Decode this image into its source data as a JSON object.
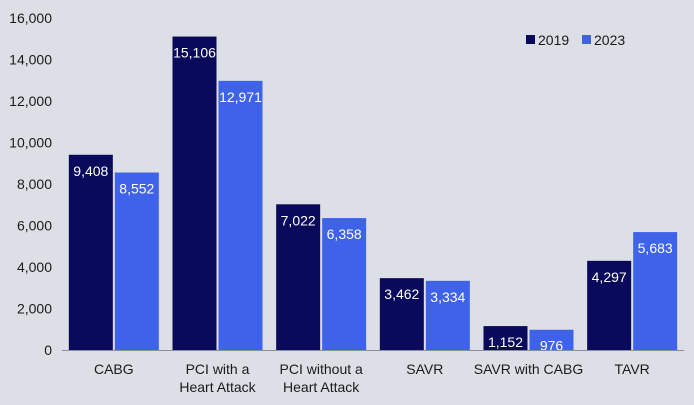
{
  "chart_data": {
    "type": "bar",
    "categories": [
      "CABG",
      "PCI with a\nHeart Attack",
      "PCI without a\nHeart Attack",
      "SAVR",
      "SAVR with CABG",
      "TAVR"
    ],
    "series": [
      {
        "name": "2019",
        "color": "#0a0a5c",
        "values": [
          9408,
          15106,
          7022,
          3462,
          1152,
          4297
        ],
        "labels": [
          "9,408",
          "15,106",
          "7,022",
          "3,462",
          "1,152",
          "4,297"
        ]
      },
      {
        "name": "2023",
        "color": "#3f63e8",
        "values": [
          8552,
          12971,
          6358,
          3334,
          976,
          5683
        ],
        "labels": [
          "8,552",
          "12,971",
          "6,358",
          "3,334",
          "976",
          "5,683"
        ]
      }
    ],
    "yticks": [
      "0",
      "2,000",
      "4,000",
      "6,000",
      "8,000",
      "10,000",
      "12,000",
      "14,000",
      "16,000"
    ],
    "ylim": [
      0,
      16000
    ],
    "title": "",
    "xlabel": "",
    "ylabel": "",
    "grid": false,
    "legend_position": "top-right",
    "background": "#dcdfe5"
  }
}
